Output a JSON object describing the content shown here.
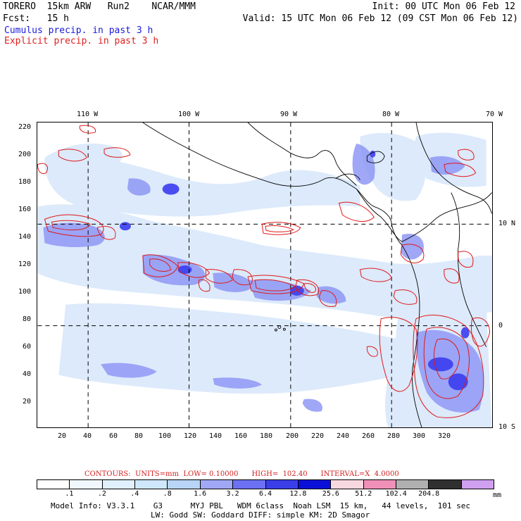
{
  "header": {
    "line1_left": "TORERO  15km ARW   Run2    NCAR/MMM",
    "line1_right": "Init: 00 UTC Mon 06 Feb 12",
    "line2_left": "Fcst:   15 h",
    "line2_right": "Valid: 15 UTC Mon 06 Feb 12 (09 CST Mon 06 Feb 12)",
    "line3": "Cumulus precip. in past 3 h",
    "line4": "Explicit precip. in past 3 h"
  },
  "map": {
    "top_lon_labels": [
      "110 W",
      "100 W",
      "90 W",
      "80 W",
      "70 W"
    ],
    "right_lat_labels": [
      "10 N",
      "0",
      "10 S"
    ],
    "left_grid_labels": [
      "220",
      "200",
      "180",
      "160",
      "140",
      "120",
      "100",
      "80",
      "60",
      "40",
      "20"
    ],
    "bottom_grid_labels": [
      "20",
      "40",
      "60",
      "80",
      "100",
      "120",
      "140",
      "160",
      "180",
      "200",
      "220",
      "240",
      "260",
      "280",
      "300",
      "320"
    ],
    "colors": {
      "cumulus_light": "#dbe9fb",
      "cumulus_mid": "#8f98f5",
      "cumulus_dark": "#3b3ef0",
      "explicit_contour": "#e01818",
      "coastline": "#000000"
    }
  },
  "contours": {
    "text": "CONTOURS:  UNITS=mm  LOW= 0.10000      HIGH=  102.40      INTERVAL=X  4.0000"
  },
  "colorbar": {
    "labels": [
      ".1",
      ".2",
      ".4",
      ".8",
      "1.6",
      "3.2",
      "6.4",
      "12.8",
      "25.6",
      "51.2",
      "102.4",
      "204.8"
    ],
    "unit": "mm",
    "colors": [
      "#ffffff",
      "#f0f8fe",
      "#e0f0fc",
      "#cfe7fa",
      "#b8d4f6",
      "#a0a8f6",
      "#6c70f2",
      "#3a3ee8",
      "#0a10d8",
      "#f8d8e0",
      "#f090b8",
      "#b0b0b0",
      "#303030",
      "#d0a0f0"
    ]
  },
  "model_info": {
    "line1": "Model Info: V3.3.1    G3      MYJ PBL   WDM 6class  Noah LSM  15 km,   44 levels,  101 sec",
    "line2": "LW: Godd SW: Goddard DIFF: simple KM: 2D Smagor"
  }
}
